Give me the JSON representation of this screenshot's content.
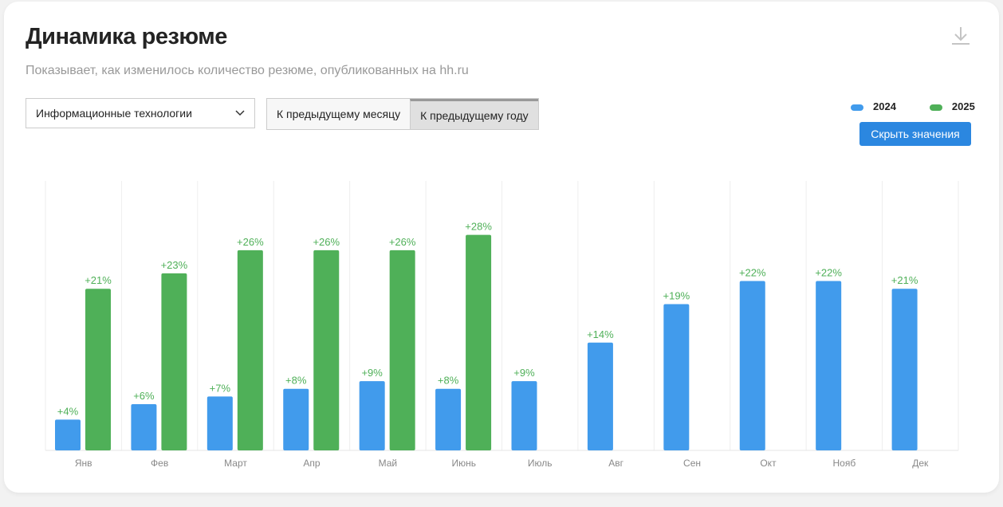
{
  "header": {
    "title": "Динамика резюме",
    "subtitle": "Показывает, как изменилось количество резюме, опубликованных на hh.ru"
  },
  "filters": {
    "industry": "Информационные технологии",
    "compare_options": [
      "К предыдущему месяцу",
      "К предыдущему году"
    ],
    "active_compare": "К предыдущему году"
  },
  "hide_values_label": "Скрыть значения",
  "colors": {
    "2024": "#419bec",
    "2025": "#4fb058",
    "label": "#4fb058"
  },
  "chart_data": {
    "type": "bar",
    "title": "Динамика резюме",
    "categories": [
      "Янв",
      "Фев",
      "Март",
      "Апр",
      "Май",
      "Июнь",
      "Июль",
      "Авг",
      "Сен",
      "Окт",
      "Нояб",
      "Дек"
    ],
    "series": [
      {
        "name": "2024",
        "values": [
          4,
          6,
          7,
          8,
          9,
          8,
          9,
          14,
          19,
          22,
          22,
          21
        ]
      },
      {
        "name": "2025",
        "values": [
          21,
          23,
          26,
          26,
          26,
          28,
          null,
          null,
          null,
          null,
          null,
          null
        ]
      }
    ],
    "unit": "%",
    "ylim": [
      0,
      35
    ],
    "legend": "top-right",
    "grid": "vertical"
  }
}
